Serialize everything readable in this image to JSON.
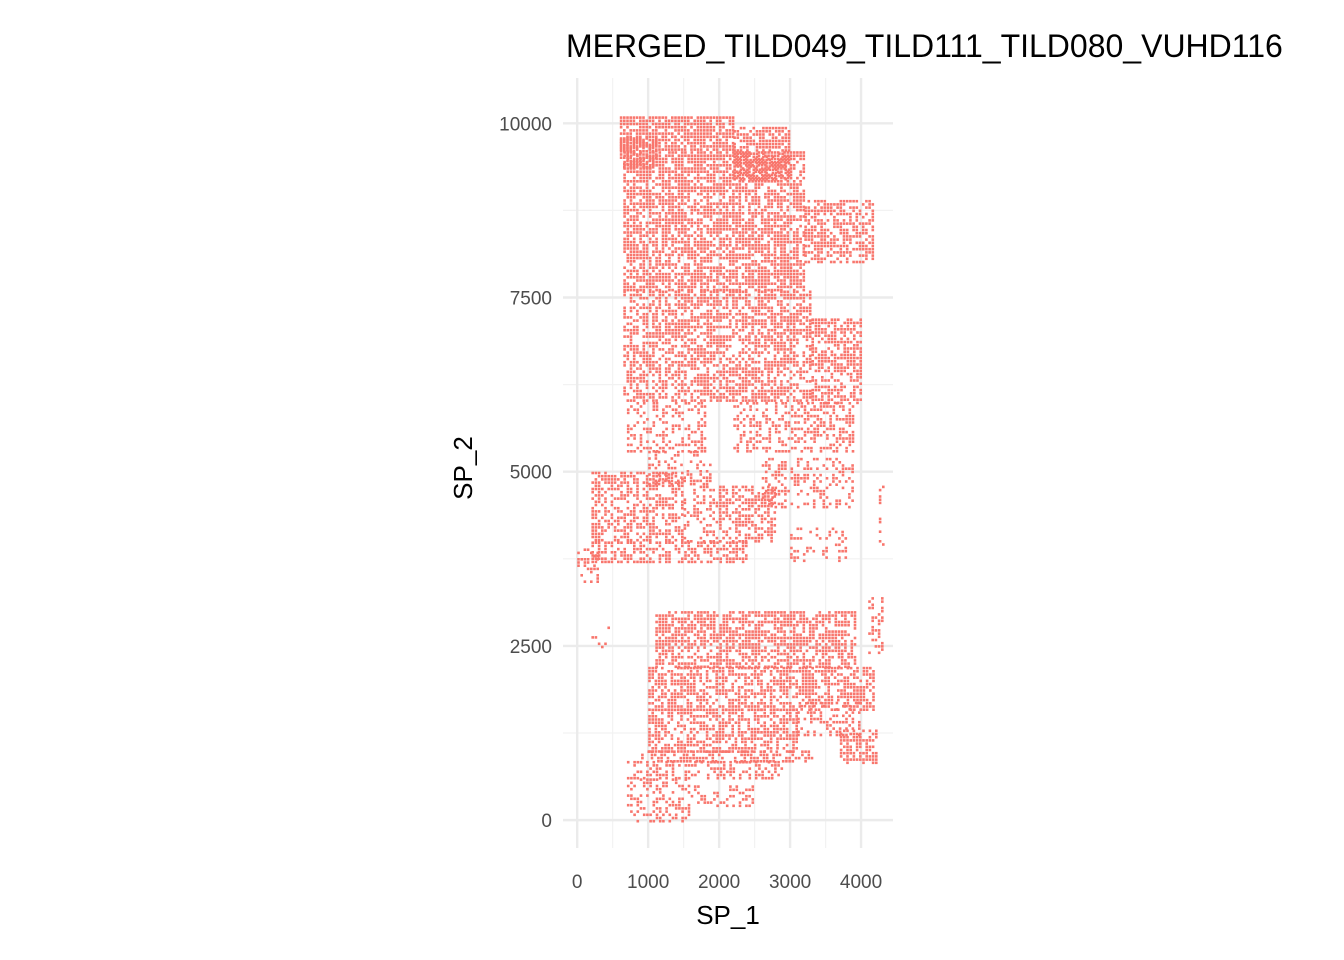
{
  "chart_data": {
    "type": "scatter",
    "title": "MERGED_TILD049_TILD111_TILD080_VUHD116",
    "xlabel": "SP_1",
    "ylabel": "SP_2",
    "xlim": [
      -200,
      4450
    ],
    "ylim": [
      -400,
      10650
    ],
    "x_ticks": [
      0,
      1000,
      2000,
      3000,
      4000
    ],
    "y_ticks": [
      0,
      2500,
      5000,
      7500,
      10000
    ],
    "x_tick_labels": [
      "0",
      "1000",
      "2000",
      "3000",
      "4000"
    ],
    "y_tick_labels": [
      "0",
      "2500",
      "5000",
      "7500",
      "10000"
    ],
    "grid": true,
    "legend": "none",
    "point_color": "#F8766D",
    "series": [
      {
        "regions": [
          {
            "x": [
              600,
              2200
            ],
            "y": [
              9600,
              10100
            ],
            "density": 0.8
          },
          {
            "x": [
              600,
              1100
            ],
            "y": [
              9350,
              9800
            ],
            "density": 0.75
          },
          {
            "x": [
              2200,
              3000
            ],
            "y": [
              9200,
              9950
            ],
            "density": 0.75
          },
          {
            "x": [
              650,
              3200
            ],
            "y": [
              7600,
              9600
            ],
            "density": 0.7
          },
          {
            "x": [
              3200,
              4150
            ],
            "y": [
              8000,
              8900
            ],
            "density": 0.65
          },
          {
            "x": [
              650,
              3300
            ],
            "y": [
              6000,
              7600
            ],
            "density": 0.6
          },
          {
            "x": [
              3300,
              4000
            ],
            "y": [
              6000,
              7200
            ],
            "density": 0.6
          },
          {
            "x": [
              700,
              1800
            ],
            "y": [
              5300,
              6000
            ],
            "density": 0.4
          },
          {
            "x": [
              2200,
              3900
            ],
            "y": [
              5300,
              6000
            ],
            "density": 0.45
          },
          {
            "x": [
              1000,
              1900
            ],
            "y": [
              4800,
              5300
            ],
            "density": 0.35
          },
          {
            "x": [
              2600,
              3900
            ],
            "y": [
              4500,
              5200
            ],
            "density": 0.35
          },
          {
            "x": [
              200,
              1500
            ],
            "y": [
              4000,
              5000
            ],
            "density": 0.55
          },
          {
            "x": [
              1500,
              2000
            ],
            "y": [
              4000,
              4800
            ],
            "density": 0.3
          },
          {
            "x": [
              2000,
              2800
            ],
            "y": [
              4000,
              4800
            ],
            "density": 0.55
          },
          {
            "x": [
              200,
              2400
            ],
            "y": [
              3700,
              4000
            ],
            "density": 0.55
          },
          {
            "x": [
              0,
              300
            ],
            "y": [
              3400,
              3900
            ],
            "density": 0.45
          },
          {
            "x": [
              3000,
              3800
            ],
            "y": [
              3700,
              4200
            ],
            "density": 0.25
          },
          {
            "x": [
              4250,
              4300
            ],
            "y": [
              3900,
              4800
            ],
            "density": 0.3
          },
          {
            "x": [
              1100,
              3900
            ],
            "y": [
              2200,
              3000
            ],
            "density": 0.65
          },
          {
            "x": [
              1000,
              4200
            ],
            "y": [
              1600,
              2200
            ],
            "density": 0.6
          },
          {
            "x": [
              1000,
              3100
            ],
            "y": [
              1000,
              1600
            ],
            "density": 0.6
          },
          {
            "x": [
              3100,
              4000
            ],
            "y": [
              1200,
              1700
            ],
            "density": 0.35
          },
          {
            "x": [
              3700,
              4200
            ],
            "y": [
              800,
              1300
            ],
            "density": 0.6
          },
          {
            "x": [
              900,
              3300
            ],
            "y": [
              850,
              1000
            ],
            "density": 0.5
          },
          {
            "x": [
              700,
              2900
            ],
            "y": [
              600,
              850
            ],
            "density": 0.45
          },
          {
            "x": [
              700,
              1600
            ],
            "y": [
              0,
              600
            ],
            "density": 0.4
          },
          {
            "x": [
              1600,
              2500
            ],
            "y": [
              200,
              500
            ],
            "density": 0.3
          },
          {
            "x": [
              4100,
              4300
            ],
            "y": [
              2400,
              3200
            ],
            "density": 0.4
          },
          {
            "x": [
              200,
              500
            ],
            "y": [
              2500,
              3100
            ],
            "density": 0.1
          }
        ]
      }
    ]
  }
}
